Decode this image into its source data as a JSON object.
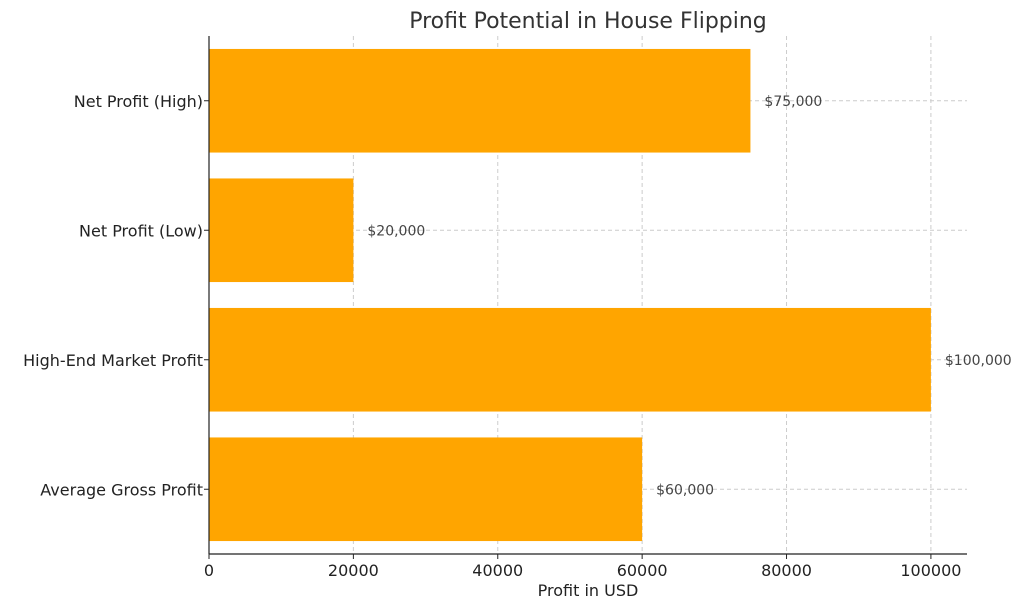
{
  "chart_data": {
    "type": "bar",
    "orientation": "horizontal",
    "title": "Profit Potential in House Flipping",
    "xlabel": "Profit in USD",
    "ylabel": "",
    "categories": [
      "Average Gross Profit",
      "High-End Market Profit",
      "Net Profit (Low)",
      "Net Profit (High)"
    ],
    "values": [
      60000,
      100000,
      20000,
      75000
    ],
    "data_labels": [
      "$60,000",
      "$100,000",
      "$20,000",
      "$75,000"
    ],
    "xlim": [
      0,
      105000
    ],
    "x_ticks": [
      0,
      20000,
      40000,
      60000,
      80000,
      100000
    ],
    "x_tick_labels": [
      "0",
      "20000",
      "40000",
      "60000",
      "80000",
      "100000"
    ],
    "bar_color": "#FFA500",
    "grid": true
  }
}
